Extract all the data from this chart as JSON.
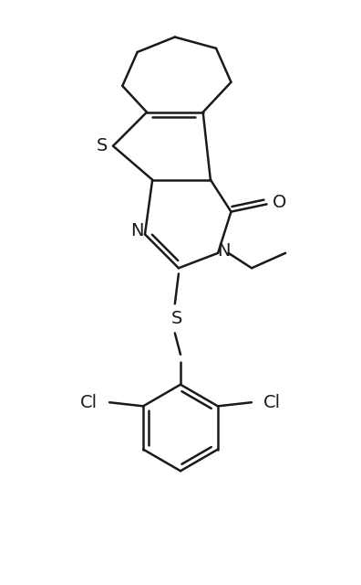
{
  "background_color": "#ffffff",
  "line_color": "#1a1a1a",
  "line_width": 1.8,
  "font_size": 13,
  "figsize": [
    3.96,
    6.4
  ],
  "dpi": 100,
  "xlim": [
    -4.0,
    5.5
  ],
  "ylim": [
    -8.5,
    5.5
  ]
}
